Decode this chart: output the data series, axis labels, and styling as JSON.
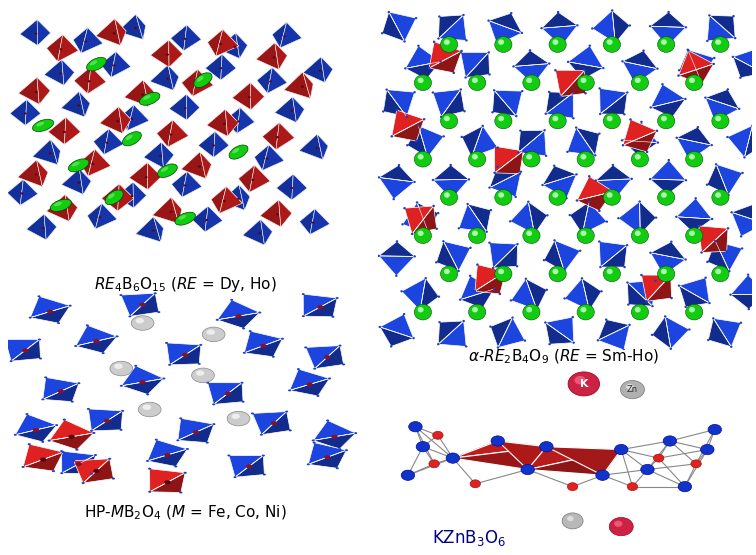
{
  "background_color": "#ffffff",
  "blue_c": "#1a3fcc",
  "red_c": "#cc1e1e",
  "green_c": "#11cc11",
  "gray_c": "#b8b8b8",
  "dark_red_c": "#991122",
  "label1": "$\\mathit{RE}_4\\mathrm{B}_6\\mathrm{O}_{15}$ ($\\mathit{RE}$ = Dy, Ho)",
  "label2": "$\\alpha$-$\\mathit{RE}_2\\mathrm{B}_4\\mathrm{O}_9$ ($\\mathit{RE}$ = Sm-Ho)",
  "label3": "HP-$\\mathit{M}\\mathrm{B}_2\\mathrm{O}_4$ ($\\mathit{M}$ = Fe, Co, Ni)",
  "label4": "$\\mathrm{KZnB}_3\\mathrm{O}_6$",
  "fig_width": 7.56,
  "fig_height": 5.55,
  "dpi": 100
}
